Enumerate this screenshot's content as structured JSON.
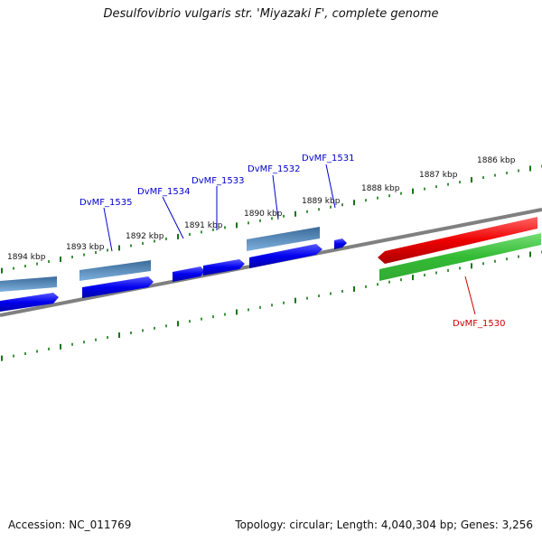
{
  "title": "Desulfovibrio vulgaris str. 'Miyazaki F', complete genome",
  "accession": "Accession: NC_011769",
  "summary": "Topology: circular; Length: 4,040,304 bp; Genes: 3,256",
  "scale_labels": [
    "1886 kbp",
    "1887 kbp",
    "1888 kbp",
    "1889 kbp",
    "1890 kbp",
    "1891 kbp",
    "1892 kbp",
    "1893 kbp",
    "1894 kbp"
  ],
  "genes": [
    {
      "label": "DvMF_1531",
      "color": "#0000cc"
    },
    {
      "label": "DvMF_1532",
      "color": "#0000cc"
    },
    {
      "label": "DvMF_1533",
      "color": "#0000cc"
    },
    {
      "label": "DvMF_1534",
      "color": "#0000cc"
    },
    {
      "label": "DvMF_1535",
      "color": "#0000cc"
    },
    {
      "label": "DvMF_1530",
      "color": "#cc0000"
    }
  ],
  "colors": {
    "cds_forward": "#0000ee",
    "feature_bar": "#4a7aaa",
    "cds_reverse_highlight": "#ee0000",
    "feature_green": "#33bb33",
    "backbone": "#808080",
    "ticks": "#117711"
  }
}
